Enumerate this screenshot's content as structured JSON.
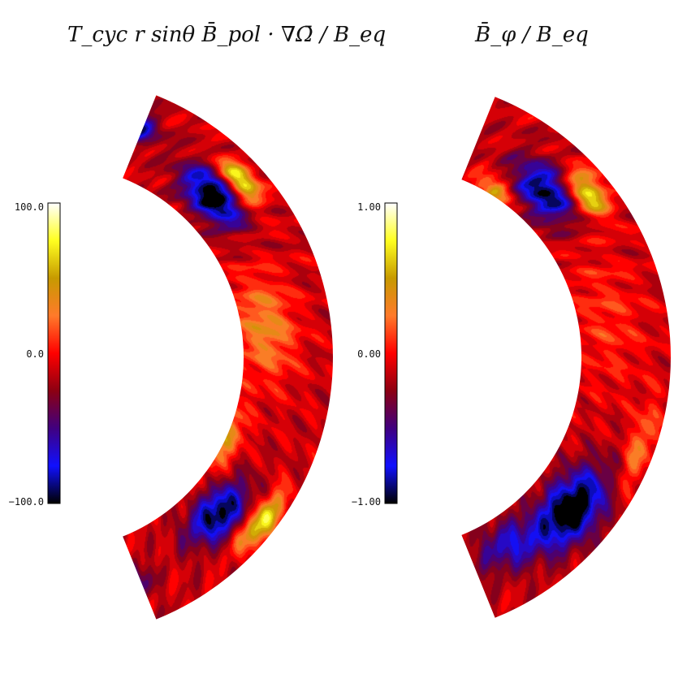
{
  "chart_data": [
    {
      "type": "heatmap",
      "title": "T_cyc r sinθ B̄_pol · ∇Ω̄ / B_eq",
      "colorbar": {
        "ticks": [
          "100.0",
          "0.0",
          "−100.0"
        ],
        "range": [
          -100,
          100
        ]
      },
      "colormap": [
        "#000000",
        "#1010ff",
        "#400080",
        "#8c0012",
        "#ff0000",
        "#ff7a2a",
        "#c79a00",
        "#ffff20",
        "#ffffff"
      ],
      "blobs": [
        {
          "r": 0.82,
          "lat": 45,
          "v": -1.0,
          "sr": 0.07,
          "sl": 9
        },
        {
          "r": 0.92,
          "lat": 43,
          "v": 1.0,
          "sr": 0.04,
          "sl": 6
        },
        {
          "r": 0.82,
          "lat": -43,
          "v": -0.9,
          "sr": 0.07,
          "sl": 9
        },
        {
          "r": 0.95,
          "lat": -38,
          "v": 0.9,
          "sr": 0.04,
          "sl": 7
        },
        {
          "r": 0.88,
          "lat": 70,
          "v": -0.8,
          "sr": 0.05,
          "sl": 5
        },
        {
          "r": 0.85,
          "lat": -72,
          "v": -0.9,
          "sr": 0.05,
          "sl": 5
        },
        {
          "r": 0.8,
          "lat": 78,
          "v": 0.8,
          "sr": 0.04,
          "sl": 4
        },
        {
          "r": 0.78,
          "lat": 8,
          "v": 0.45,
          "sr": 0.1,
          "sl": 14
        },
        {
          "r": 0.7,
          "lat": -25,
          "v": 0.5,
          "sr": 0.05,
          "sl": 10
        }
      ]
    },
    {
      "type": "heatmap",
      "title": "B̄_φ / B_eq",
      "colorbar": {
        "ticks": [
          "1.00",
          "0.00",
          "−1.00"
        ],
        "range": [
          -1,
          1
        ]
      },
      "colormap": [
        "#000000",
        "#1010ff",
        "#400080",
        "#8c0012",
        "#ff0000",
        "#ff7a2a",
        "#c79a00",
        "#ffff20",
        "#ffffff"
      ],
      "blobs": [
        {
          "r": 0.82,
          "lat": 47,
          "v": -0.85,
          "sr": 0.08,
          "sl": 9
        },
        {
          "r": 0.92,
          "lat": 40,
          "v": 0.9,
          "sr": 0.05,
          "sl": 6
        },
        {
          "r": 0.85,
          "lat": -40,
          "v": -1.05,
          "sr": 0.09,
          "sl": 11
        },
        {
          "r": 0.72,
          "lat": 58,
          "v": 0.6,
          "sr": 0.04,
          "sl": 6
        },
        {
          "r": 0.72,
          "lat": 80,
          "v": 0.95,
          "sr": 0.04,
          "sl": 6
        },
        {
          "r": 0.9,
          "lat": 82,
          "v": -0.7,
          "sr": 0.05,
          "sl": 4
        },
        {
          "r": 0.8,
          "lat": -80,
          "v": -1.05,
          "sr": 0.1,
          "sl": 7
        },
        {
          "r": 0.8,
          "lat": -58,
          "v": -0.5,
          "sr": 0.08,
          "sl": 8
        },
        {
          "r": 0.95,
          "lat": -20,
          "v": 0.4,
          "sr": 0.04,
          "sl": 10
        },
        {
          "r": 0.8,
          "lat": 10,
          "v": 0.2,
          "sr": 0.12,
          "sl": 18
        }
      ]
    }
  ]
}
